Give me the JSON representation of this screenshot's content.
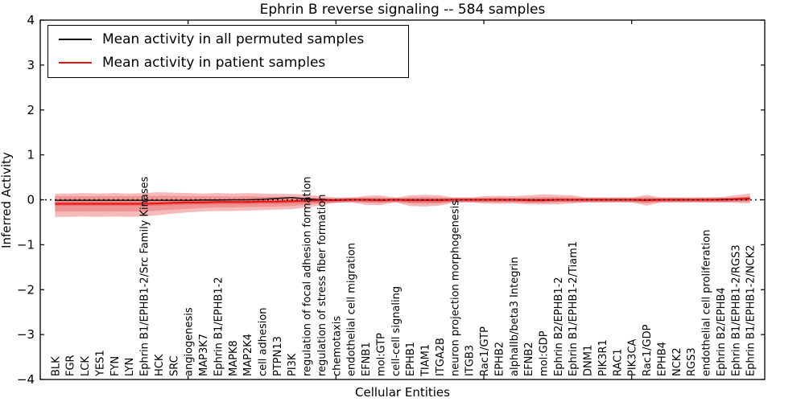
{
  "chart_data": {
    "type": "line",
    "title": "Ephrin B reverse signaling -- 584 samples",
    "xlabel": "Cellular Entities",
    "ylabel": "Inferred Activity",
    "ylim": [
      -4,
      4
    ],
    "yticks": [
      4,
      3,
      2,
      1,
      0,
      -1,
      -2,
      -3,
      -4
    ],
    "ytick_labels": [
      "4",
      "3",
      "2",
      "1",
      "0",
      "−1",
      "−2",
      "−3",
      "−4"
    ],
    "x_tick_marks_units": [
      0,
      10,
      20,
      30,
      40
    ],
    "grid": false,
    "categories": [
      "BLK",
      "FGR",
      "LCK",
      "YES1",
      "FYN",
      "LYN",
      "Ephrin B1/EPHB1-2/Src Family Kinases",
      "HCK",
      "SRC",
      "angiogenesis",
      "MAP3K7",
      "Ephrin B1/EPHB1-2",
      "MAPK8",
      "MAP2K4",
      "cell adhesion",
      "PTPN13",
      "PI3K",
      "regulation of focal adhesion formation",
      "regulation of stress fiber formation",
      "chemotaxis",
      "endothelial cell migration",
      "EFNB1",
      "mol:GTP",
      "cell-cell signaling",
      "EPHB1",
      "TIAM1",
      "ITGA2B",
      "neuron projection morphogenesis",
      "ITGB3",
      "Rac1/GTP",
      "EPHB2",
      "alphaIIb/beta3 Integrin",
      "EFNB2",
      "mol:GDP",
      "Ephrin B2/EPHB1-2",
      "Ephrin B1/EPHB1-2/Tiam1",
      "DNM1",
      "PIK3R1",
      "RAC1",
      "PIK3CA",
      "Rac1/GDP",
      "EPHB4",
      "NCK2",
      "RGS3",
      "endothelial cell proliferation",
      "Ephrin B2/EPHB4",
      "Ephrin B1/EPHB1-2/RGS3",
      "Ephrin B1/EPHB1-2/NCK2"
    ],
    "series": [
      {
        "name": "Mean activity in all permuted samples",
        "color": "#000000",
        "width": 1.3,
        "values": [
          -0.01,
          -0.01,
          -0.01,
          -0.01,
          -0.01,
          -0.01,
          -0.01,
          -0.01,
          -0.01,
          -0.01,
          -0.005,
          -0.005,
          0,
          0,
          0.01,
          0.03,
          0.05,
          0.02,
          0,
          0,
          0,
          0,
          0,
          0,
          0,
          0,
          0,
          0,
          0,
          0,
          0,
          0,
          0,
          0,
          0,
          0,
          0,
          0,
          0,
          0,
          0,
          0,
          0,
          0,
          0,
          0.01,
          0.02,
          0.03
        ]
      },
      {
        "name": "Mean activity in patient samples",
        "color": "#f01010",
        "width": 2,
        "values": [
          -0.09,
          -0.09,
          -0.09,
          -0.09,
          -0.09,
          -0.09,
          -0.09,
          -0.08,
          -0.07,
          -0.06,
          -0.06,
          -0.05,
          -0.05,
          -0.05,
          -0.04,
          -0.04,
          -0.03,
          -0.02,
          -0.01,
          -0.01,
          0,
          0,
          -0.01,
          0,
          -0.01,
          -0.01,
          -0.01,
          0,
          0,
          0,
          0,
          0,
          -0.01,
          -0.01,
          0,
          0,
          0,
          0,
          0,
          0,
          -0.01,
          0,
          0,
          0,
          0,
          0,
          0.01,
          0.02
        ]
      }
    ],
    "bands": [
      {
        "name": "permuted-gray",
        "color": "#e6e6e6",
        "upper": 0.065,
        "lower": -0.065
      },
      {
        "name": "patient-outer",
        "color": "#f6baba",
        "upper": [
          0.14,
          0.14,
          0.15,
          0.14,
          0.15,
          0.14,
          0.15,
          0.17,
          0.16,
          0.15,
          0.14,
          0.15,
          0.14,
          0.15,
          0.14,
          0.13,
          0.13,
          0.12,
          0.08,
          0.045,
          0.045,
          0.09,
          0.1,
          0.045,
          0.1,
          0.11,
          0.1,
          0.05,
          0.045,
          0.08,
          0.09,
          0.08,
          0.1,
          0.12,
          0.11,
          0.1,
          0.05,
          0.05,
          0.045,
          0.05,
          0.11,
          0.05,
          0.045,
          0.045,
          0.05,
          0.06,
          0.1,
          0.14
        ],
        "lower": [
          -0.38,
          -0.38,
          -0.37,
          -0.38,
          -0.37,
          -0.38,
          -0.37,
          -0.34,
          -0.31,
          -0.28,
          -0.26,
          -0.25,
          -0.25,
          -0.24,
          -0.23,
          -0.22,
          -0.21,
          -0.17,
          -0.12,
          -0.06,
          -0.055,
          -0.11,
          -0.12,
          -0.055,
          -0.14,
          -0.15,
          -0.13,
          -0.06,
          -0.055,
          -0.08,
          -0.09,
          -0.08,
          -0.1,
          -0.1,
          -0.1,
          -0.08,
          -0.06,
          -0.06,
          -0.055,
          -0.06,
          -0.13,
          -0.06,
          -0.055,
          -0.055,
          -0.06,
          -0.06,
          -0.07,
          -0.08
        ]
      },
      {
        "name": "patient-inner",
        "color": "#ef9494",
        "upper": [
          0.08,
          0.08,
          0.08,
          0.08,
          0.08,
          0.08,
          0.08,
          0.09,
          0.09,
          0.08,
          0.08,
          0.08,
          0.07,
          0.08,
          0.07,
          0.07,
          0.07,
          0.06,
          0.04,
          0.025,
          0.02,
          0.05,
          0.05,
          0.025,
          0.05,
          0.06,
          0.05,
          0.03,
          0.025,
          0.04,
          0.05,
          0.04,
          0.05,
          0.06,
          0.06,
          0.05,
          0.03,
          0.03,
          0.025,
          0.03,
          0.06,
          0.03,
          0.025,
          0.025,
          0.03,
          0.03,
          0.05,
          0.08
        ],
        "lower": [
          -0.26,
          -0.26,
          -0.26,
          -0.26,
          -0.26,
          -0.26,
          -0.26,
          -0.24,
          -0.22,
          -0.2,
          -0.18,
          -0.17,
          -0.17,
          -0.16,
          -0.16,
          -0.15,
          -0.14,
          -0.11,
          -0.08,
          -0.04,
          -0.035,
          -0.06,
          -0.07,
          -0.035,
          -0.08,
          -0.09,
          -0.08,
          -0.04,
          -0.035,
          -0.04,
          -0.05,
          -0.04,
          -0.05,
          -0.05,
          -0.05,
          -0.04,
          -0.035,
          -0.035,
          -0.035,
          -0.035,
          -0.07,
          -0.035,
          -0.035,
          -0.035,
          -0.035,
          -0.035,
          -0.04,
          -0.04
        ]
      },
      {
        "name": "patient-core",
        "color": "#e87676",
        "upper": [
          -0.05,
          -0.05,
          -0.05,
          -0.05,
          -0.05,
          -0.05,
          -0.05,
          -0.04,
          -0.03,
          -0.02,
          -0.02,
          -0.01,
          -0.01,
          -0.01,
          0,
          0,
          0.01,
          0.02,
          0.03,
          0.03,
          0.04,
          0.04,
          0.03,
          0.04,
          0.03,
          0.03,
          0.03,
          0.04,
          0.04,
          0.04,
          0.04,
          0.04,
          0.03,
          0.03,
          0.04,
          0.04,
          0.04,
          0.04,
          0.04,
          0.04,
          0.03,
          0.04,
          0.04,
          0.04,
          0.04,
          0.04,
          0.05,
          0.06
        ],
        "lower": [
          -0.14,
          -0.14,
          -0.14,
          -0.14,
          -0.14,
          -0.14,
          -0.14,
          -0.13,
          -0.12,
          -0.11,
          -0.11,
          -0.1,
          -0.1,
          -0.1,
          -0.09,
          -0.09,
          -0.08,
          -0.07,
          -0.06,
          -0.06,
          -0.05,
          -0.05,
          -0.06,
          -0.05,
          -0.06,
          -0.06,
          -0.06,
          -0.05,
          -0.05,
          -0.05,
          -0.05,
          -0.05,
          -0.06,
          -0.06,
          -0.05,
          -0.05,
          -0.05,
          -0.05,
          -0.05,
          -0.05,
          -0.06,
          -0.05,
          -0.05,
          -0.05,
          -0.05,
          -0.05,
          -0.04,
          -0.03
        ]
      }
    ],
    "zero_line": {
      "y": 0,
      "style": "dotted",
      "color": "#000000"
    },
    "legend": {
      "position": "upper left",
      "entries": [
        {
          "label": "Mean activity in all permuted samples",
          "color": "#000000"
        },
        {
          "label": "Mean activity in patient samples",
          "color": "#f01010"
        }
      ]
    }
  }
}
